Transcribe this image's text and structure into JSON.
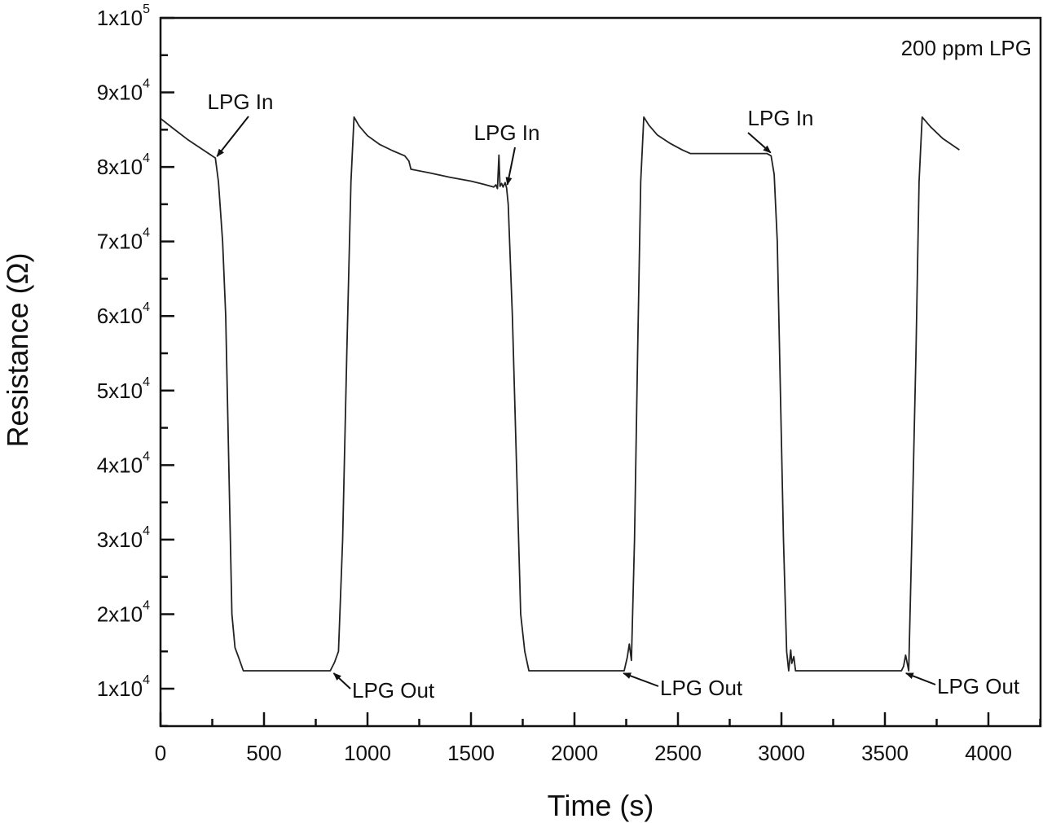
{
  "chart_data": {
    "type": "line",
    "title": "",
    "annotation_title": "200 ppm LPG",
    "xlabel": "Time (s)",
    "ylabel": "Resistance (Ω)",
    "xlim": [
      0,
      4250
    ],
    "ylim": [
      5000,
      100000
    ],
    "grid": false,
    "legend": null,
    "x_ticks": [
      0,
      500,
      1000,
      1500,
      2000,
      2500,
      3000,
      3500,
      4000
    ],
    "x_tick_labels": [
      "0",
      "500",
      "1000",
      "1500",
      "2000",
      "2500",
      "3000",
      "3500",
      "4000"
    ],
    "y_ticks": [
      10000,
      20000,
      30000,
      40000,
      50000,
      60000,
      70000,
      80000,
      90000,
      100000
    ],
    "y_tick_labels": [
      {
        "base": "1x10",
        "exp": "4"
      },
      {
        "base": "2x10",
        "exp": "4"
      },
      {
        "base": "3x10",
        "exp": "4"
      },
      {
        "base": "4x10",
        "exp": "4"
      },
      {
        "base": "5x10",
        "exp": "4"
      },
      {
        "base": "6x10",
        "exp": "4"
      },
      {
        "base": "7x10",
        "exp": "4"
      },
      {
        "base": "8x10",
        "exp": "4"
      },
      {
        "base": "9x10",
        "exp": "4"
      },
      {
        "base": "1x10",
        "exp": "5"
      }
    ],
    "series": [
      {
        "name": "Resistance",
        "color": "#222222",
        "x": [
          0,
          60,
          130,
          200,
          265,
          280,
          300,
          315,
          330,
          345,
          360,
          380,
          400,
          520,
          640,
          760,
          820,
          840,
          860,
          880,
          900,
          920,
          935,
          960,
          1000,
          1060,
          1120,
          1180,
          1200,
          1210,
          1300,
          1400,
          1500,
          1560,
          1610,
          1620,
          1628,
          1635,
          1640,
          1648,
          1655,
          1665,
          1672,
          1680,
          1700,
          1720,
          1740,
          1760,
          1780,
          1900,
          2000,
          2100,
          2220,
          2240,
          2255,
          2265,
          2275,
          2290,
          2305,
          2320,
          2335,
          2360,
          2400,
          2460,
          2520,
          2560,
          2700,
          2850,
          2930,
          2950,
          2965,
          2980,
          2995,
          3010,
          3025,
          3035,
          3045,
          3050,
          3060,
          3068,
          3080,
          3200,
          3350,
          3500,
          3570,
          3580,
          3590,
          3600,
          3615,
          3630,
          3650,
          3665,
          3680,
          3720,
          3780,
          3860
        ],
        "y": [
          86500,
          85200,
          83700,
          82400,
          81200,
          78000,
          70000,
          60000,
          40000,
          20000,
          15500,
          14000,
          12400,
          12400,
          12400,
          12400,
          12400,
          13500,
          15000,
          30000,
          55000,
          78000,
          86700,
          85500,
          84200,
          83000,
          82200,
          81500,
          80800,
          79700,
          79200,
          78600,
          78100,
          77700,
          77300,
          77600,
          77100,
          81600,
          77400,
          77800,
          77300,
          77900,
          77200,
          75000,
          60000,
          40000,
          20000,
          15000,
          12400,
          12400,
          12400,
          12400,
          12400,
          12400,
          14200,
          16000,
          13800,
          30000,
          55000,
          78000,
          86700,
          85600,
          84300,
          83200,
          82300,
          81800,
          81800,
          81800,
          81800,
          81500,
          79000,
          70000,
          50000,
          30000,
          15000,
          12400,
          15200,
          13400,
          14300,
          12400,
          12400,
          12400,
          12400,
          12400,
          12400,
          12400,
          13000,
          14500,
          12400,
          30000,
          55000,
          78000,
          86700,
          85400,
          83800,
          82300
        ]
      }
    ],
    "annotations": [
      {
        "text": "LPG In",
        "at": [
          265,
          81200
        ],
        "text_pos": [
          295,
          125
        ]
      },
      {
        "text": "LPG In",
        "at": [
          1668,
          77400
        ],
        "text_pos": [
          622,
          163
        ]
      },
      {
        "text": "LPG In",
        "at": [
          2940,
          81700
        ],
        "text_pos": [
          958,
          145
        ]
      },
      {
        "text": "LPG Out",
        "at": [
          825,
          12400
        ],
        "text_pos": [
          432,
          848
        ]
      },
      {
        "text": "LPG Out",
        "at": [
          2225,
          12400
        ],
        "text_pos": [
          810,
          845
        ]
      },
      {
        "text": "LPG Out",
        "at": [
          3590,
          12400
        ],
        "text_pos": [
          1150,
          843
        ]
      }
    ]
  }
}
